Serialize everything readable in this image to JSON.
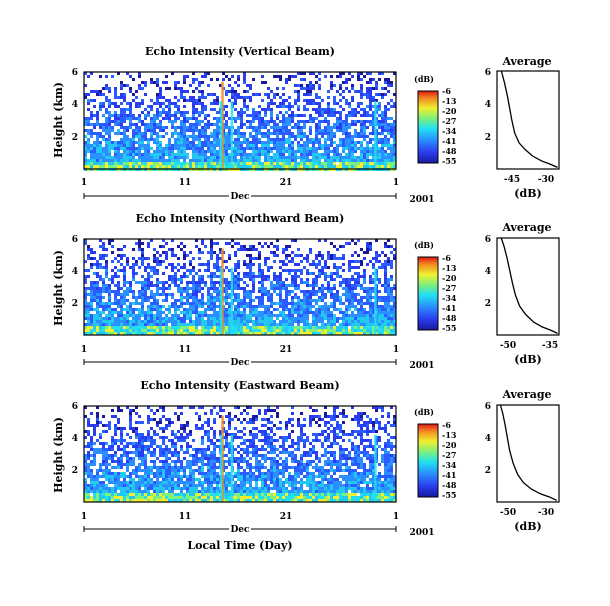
{
  "chart_data": [
    {
      "type": "heatmap",
      "title": "Echo Intensity (Vertical Beam)",
      "ylabel": "Height (km)",
      "y_ticks": [
        "6",
        "4",
        "2"
      ],
      "ylim": [
        0,
        6
      ],
      "x_ticks": [
        "1",
        "11",
        "21",
        "1"
      ],
      "x_month": "Dec",
      "x_year": "2001",
      "colorbar": {
        "unit": "(dB)",
        "ticks": [
          "-6",
          "-13",
          "-20",
          "-27",
          "-34",
          "-41",
          "-48",
          "-55"
        ],
        "range": [
          -55,
          -6
        ]
      },
      "profile": {
        "title": "Average",
        "xlabel": "(dB)",
        "x_ticks": [
          "-45",
          "-30"
        ],
        "xlim": [
          -48,
          -27
        ],
        "y_ticks": [
          "6",
          "4",
          "2"
        ],
        "ylim": [
          0,
          6
        ],
        "points": [
          [
            -27.5,
            0.1
          ],
          [
            -30,
            0.3
          ],
          [
            -33,
            0.5
          ],
          [
            -36,
            0.8
          ],
          [
            -38.5,
            1.2
          ],
          [
            -40.5,
            1.6
          ],
          [
            -42,
            2.2
          ],
          [
            -43,
            3.0
          ],
          [
            -43.8,
            3.8
          ],
          [
            -44.5,
            4.5
          ],
          [
            -45.5,
            5.3
          ],
          [
            -46.5,
            6.0
          ]
        ]
      }
    },
    {
      "type": "heatmap",
      "title": "Echo Intensity (Northward Beam)",
      "ylabel": "Height (km)",
      "y_ticks": [
        "6",
        "4",
        "2"
      ],
      "ylim": [
        0,
        6
      ],
      "x_ticks": [
        "1",
        "11",
        "21",
        "1"
      ],
      "x_month": "Dec",
      "x_year": "2001",
      "colorbar": {
        "unit": "(dB)",
        "ticks": [
          "-6",
          "-13",
          "-20",
          "-27",
          "-34",
          "-41",
          "-48",
          "-55"
        ],
        "range": [
          -55,
          -6
        ]
      },
      "profile": {
        "title": "Average",
        "xlabel": "(dB)",
        "x_ticks": [
          "-50",
          "-35"
        ],
        "xlim": [
          -53,
          -31
        ],
        "y_ticks": [
          "6",
          "4",
          "2"
        ],
        "ylim": [
          0,
          6
        ],
        "points": [
          [
            -31.5,
            0.1
          ],
          [
            -34,
            0.3
          ],
          [
            -37,
            0.5
          ],
          [
            -40,
            0.8
          ],
          [
            -43,
            1.3
          ],
          [
            -45,
            1.8
          ],
          [
            -46.5,
            2.5
          ],
          [
            -47.5,
            3.2
          ],
          [
            -48.5,
            4.0
          ],
          [
            -49.5,
            4.8
          ],
          [
            -50.5,
            5.5
          ],
          [
            -51.5,
            6.0
          ]
        ]
      }
    },
    {
      "type": "heatmap",
      "title": "Echo Intensity (Eastward Beam)",
      "ylabel": "Height (km)",
      "y_ticks": [
        "6",
        "4",
        "2"
      ],
      "ylim": [
        0,
        6
      ],
      "x_ticks": [
        "1",
        "11",
        "21",
        "1"
      ],
      "x_month": "Dec",
      "x_year": "2001",
      "xlabel": "Local Time (Day)",
      "colorbar": {
        "unit": "(dB)",
        "ticks": [
          "-6",
          "-13",
          "-20",
          "-27",
          "-34",
          "-41",
          "-48",
          "-55"
        ],
        "range": [
          -55,
          -6
        ]
      },
      "profile": {
        "title": "Average",
        "xlabel": "(dB)",
        "x_ticks": [
          "-50",
          "-30"
        ],
        "xlim": [
          -53,
          -26
        ],
        "y_ticks": [
          "6",
          "4",
          "2"
        ],
        "ylim": [
          0,
          6
        ],
        "points": [
          [
            -27,
            0.1
          ],
          [
            -30,
            0.3
          ],
          [
            -34,
            0.5
          ],
          [
            -38,
            0.8
          ],
          [
            -41.5,
            1.2
          ],
          [
            -44,
            1.7
          ],
          [
            -46,
            2.4
          ],
          [
            -47.5,
            3.2
          ],
          [
            -48.5,
            4.0
          ],
          [
            -49.5,
            4.8
          ],
          [
            -50.5,
            5.5
          ],
          [
            -51.5,
            6.0
          ]
        ]
      }
    }
  ]
}
